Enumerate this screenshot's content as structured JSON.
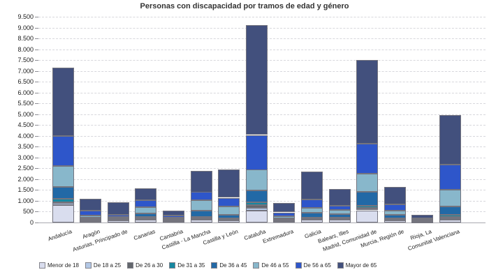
{
  "chart_data": {
    "type": "bar",
    "stacked": true,
    "title": "Personas con discapacidad por tramos de edad y género",
    "xlabel": "",
    "ylabel": "",
    "ylim": [
      0,
      9500
    ],
    "ytick_step": 500,
    "grid": true,
    "grid_style": "dashed",
    "legend_position": "bottom",
    "background": "#ffffff",
    "categories": [
      "Andalucía",
      "Aragón",
      "Asturias, Principado de",
      "Canarias",
      "Cantabria",
      "Castilla - La Mancha",
      "Castilla y León",
      "Cataluña",
      "Extremadura",
      "Galicia",
      "Balears, Illes",
      "Madrid, Comunidad de",
      "Murcia, Región de",
      "Rioja, La",
      "Comunitat Valenciana"
    ],
    "series": [
      {
        "name": "Menor de 18",
        "color": "#d9ddee",
        "values": [
          820,
          80,
          90,
          125,
          65,
          140,
          95,
          545,
          70,
          120,
          140,
          550,
          105,
          35,
          130
        ]
      },
      {
        "name": "De 18 a 25",
        "color": "#b3c8e6",
        "values": [
          90,
          40,
          25,
          40,
          25,
          45,
          40,
          130,
          25,
          40,
          35,
          80,
          35,
          10,
          65
        ]
      },
      {
        "name": "De 26 a 30",
        "color": "#63676d",
        "values": [
          40,
          15,
          10,
          30,
          10,
          20,
          15,
          125,
          10,
          20,
          15,
          60,
          15,
          5,
          65
        ]
      },
      {
        "name": "De 31 a 35",
        "color": "#1587a0",
        "values": [
          150,
          25,
          20,
          60,
          20,
          45,
          60,
          130,
          25,
          55,
          40,
          85,
          45,
          10,
          100
        ]
      },
      {
        "name": "De 36 a 45",
        "color": "#2269a6",
        "values": [
          540,
          60,
          40,
          160,
          35,
          290,
          160,
          545,
          70,
          225,
          150,
          655,
          165,
          25,
          385
        ]
      },
      {
        "name": "De 46 a 55",
        "color": "#88b7cb",
        "values": [
          960,
          110,
          70,
          290,
          60,
          480,
          385,
          965,
          100,
          225,
          195,
          840,
          195,
          40,
          770
        ]
      },
      {
        "name": "De 56 a 65",
        "color": "#2e56ca",
        "values": [
          1400,
          225,
          110,
          320,
          105,
          385,
          385,
          1600,
          160,
          385,
          195,
          1370,
          290,
          55,
          1150
        ]
      },
      {
        "name": "Mayor de 65",
        "color": "#42507d",
        "values": [
          3150,
          555,
          575,
          545,
          240,
          985,
          1300,
          5060,
          430,
          1280,
          770,
          3860,
          800,
          175,
          2290
        ]
      }
    ],
    "totals": [
      7150,
      1110,
      940,
      1570,
      560,
      2390,
      2440,
      9100,
      890,
      2350,
      1540,
      7500,
      1650,
      355,
      4955
    ]
  }
}
